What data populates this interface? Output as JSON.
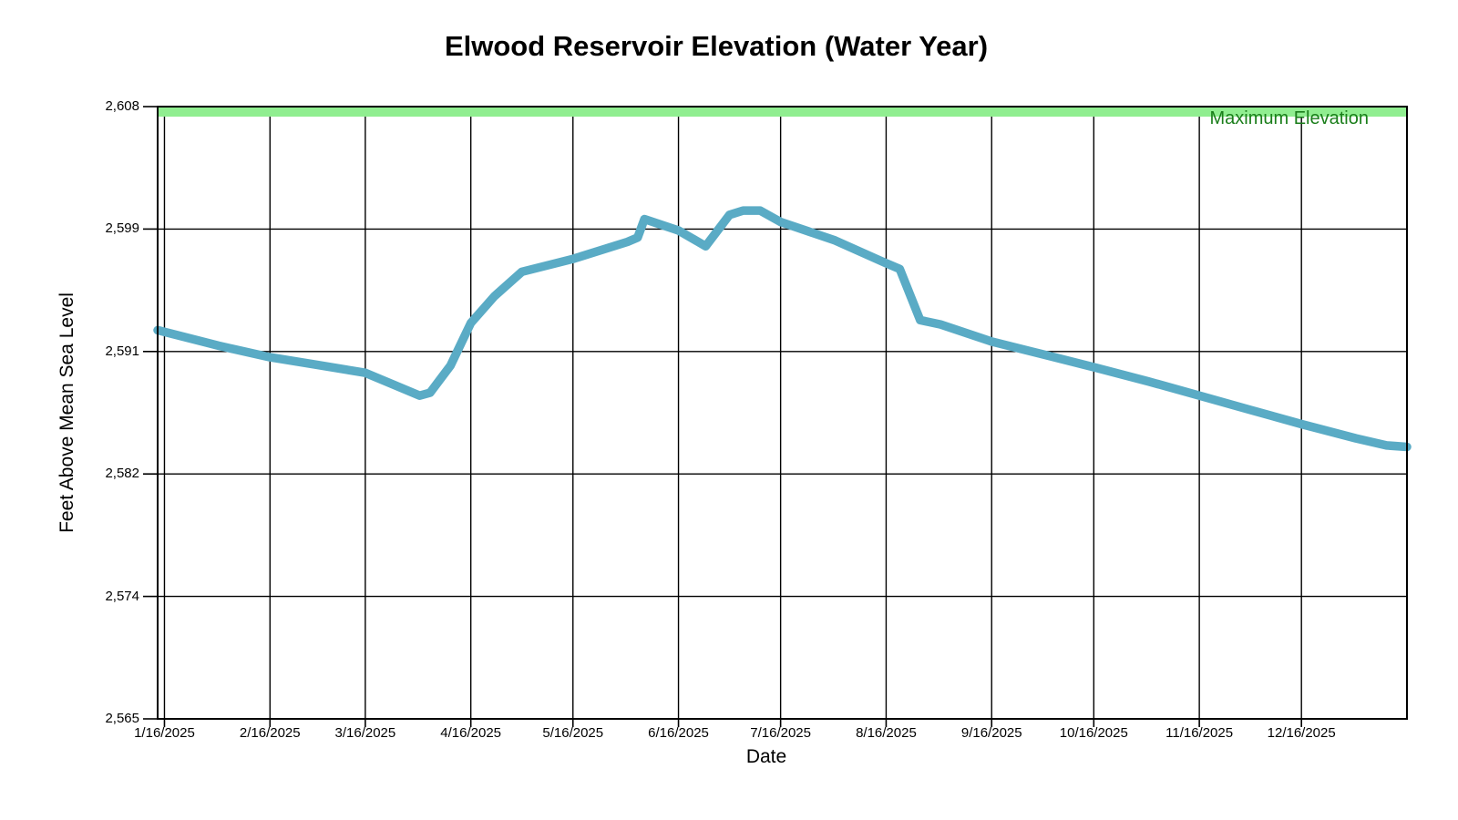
{
  "chart_data": {
    "type": "line",
    "title": "Elwood Reservoir Elevation (Water Year)",
    "xlabel": "Date",
    "ylabel": "Feet Above Mean Sea Level",
    "x_range": [
      "2025-01-14",
      "2026-01-16"
    ],
    "ylim": [
      2565,
      2608
    ],
    "grid": true,
    "grid_color": "#000000",
    "legend_position": "none",
    "y_ticks": [
      {
        "label": "2,608",
        "value": 2608
      },
      {
        "label": "2,599",
        "value": 2599.4
      },
      {
        "label": "2,591",
        "value": 2590.8
      },
      {
        "label": "2,582",
        "value": 2582.2
      },
      {
        "label": "2,574",
        "value": 2573.6
      },
      {
        "label": "2,565",
        "value": 2565
      }
    ],
    "x_ticks": [
      {
        "label": "1/16/2025",
        "date": "2025-01-16"
      },
      {
        "label": "2/16/2025",
        "date": "2025-02-16"
      },
      {
        "label": "3/16/2025",
        "date": "2025-03-16"
      },
      {
        "label": "4/16/2025",
        "date": "2025-04-16"
      },
      {
        "label": "5/16/2025",
        "date": "2025-05-16"
      },
      {
        "label": "6/16/2025",
        "date": "2025-06-16"
      },
      {
        "label": "7/16/2025",
        "date": "2025-07-16"
      },
      {
        "label": "8/16/2025",
        "date": "2025-08-16"
      },
      {
        "label": "9/16/2025",
        "date": "2025-09-16"
      },
      {
        "label": "10/16/2025",
        "date": "2025-10-16"
      },
      {
        "label": "11/16/2025",
        "date": "2025-11-16"
      },
      {
        "label": "12/16/2025",
        "date": "2025-12-16"
      }
    ],
    "series": [
      {
        "color": "#5AABC5",
        "points": [
          {
            "date": "2025-01-14",
            "value": 2592.3
          },
          {
            "date": "2025-02-01",
            "value": 2591.2
          },
          {
            "date": "2025-02-16",
            "value": 2590.4
          },
          {
            "date": "2025-03-01",
            "value": 2589.9
          },
          {
            "date": "2025-03-16",
            "value": 2589.3
          },
          {
            "date": "2025-03-24",
            "value": 2588.5
          },
          {
            "date": "2025-04-01",
            "value": 2587.7
          },
          {
            "date": "2025-04-04",
            "value": 2587.9
          },
          {
            "date": "2025-04-10",
            "value": 2589.8
          },
          {
            "date": "2025-04-16",
            "value": 2592.8
          },
          {
            "date": "2025-04-23",
            "value": 2594.7
          },
          {
            "date": "2025-05-01",
            "value": 2596.4
          },
          {
            "date": "2025-05-16",
            "value": 2597.3
          },
          {
            "date": "2025-06-01",
            "value": 2598.5
          },
          {
            "date": "2025-06-04",
            "value": 2598.8
          },
          {
            "date": "2025-06-06",
            "value": 2600.1
          },
          {
            "date": "2025-06-16",
            "value": 2599.3
          },
          {
            "date": "2025-06-24",
            "value": 2598.2
          },
          {
            "date": "2025-07-01",
            "value": 2600.4
          },
          {
            "date": "2025-07-05",
            "value": 2600.7
          },
          {
            "date": "2025-07-10",
            "value": 2600.7
          },
          {
            "date": "2025-07-16",
            "value": 2599.9
          },
          {
            "date": "2025-08-01",
            "value": 2598.6
          },
          {
            "date": "2025-08-16",
            "value": 2597.0
          },
          {
            "date": "2025-08-20",
            "value": 2596.6
          },
          {
            "date": "2025-08-26",
            "value": 2593.0
          },
          {
            "date": "2025-09-01",
            "value": 2592.7
          },
          {
            "date": "2025-09-16",
            "value": 2591.5
          },
          {
            "date": "2025-10-01",
            "value": 2590.6
          },
          {
            "date": "2025-10-16",
            "value": 2589.7
          },
          {
            "date": "2025-11-01",
            "value": 2588.7
          },
          {
            "date": "2025-11-16",
            "value": 2587.7
          },
          {
            "date": "2025-12-01",
            "value": 2586.7
          },
          {
            "date": "2025-12-16",
            "value": 2585.7
          },
          {
            "date": "2026-01-01",
            "value": 2584.7
          },
          {
            "date": "2026-01-10",
            "value": 2584.2
          },
          {
            "date": "2026-01-16",
            "value": 2584.1
          }
        ]
      }
    ],
    "max_elevation": {
      "label": "Maximum Elevation",
      "value": 2608,
      "line_color": "#90EE90",
      "label_color": "#1B7E1B"
    }
  }
}
